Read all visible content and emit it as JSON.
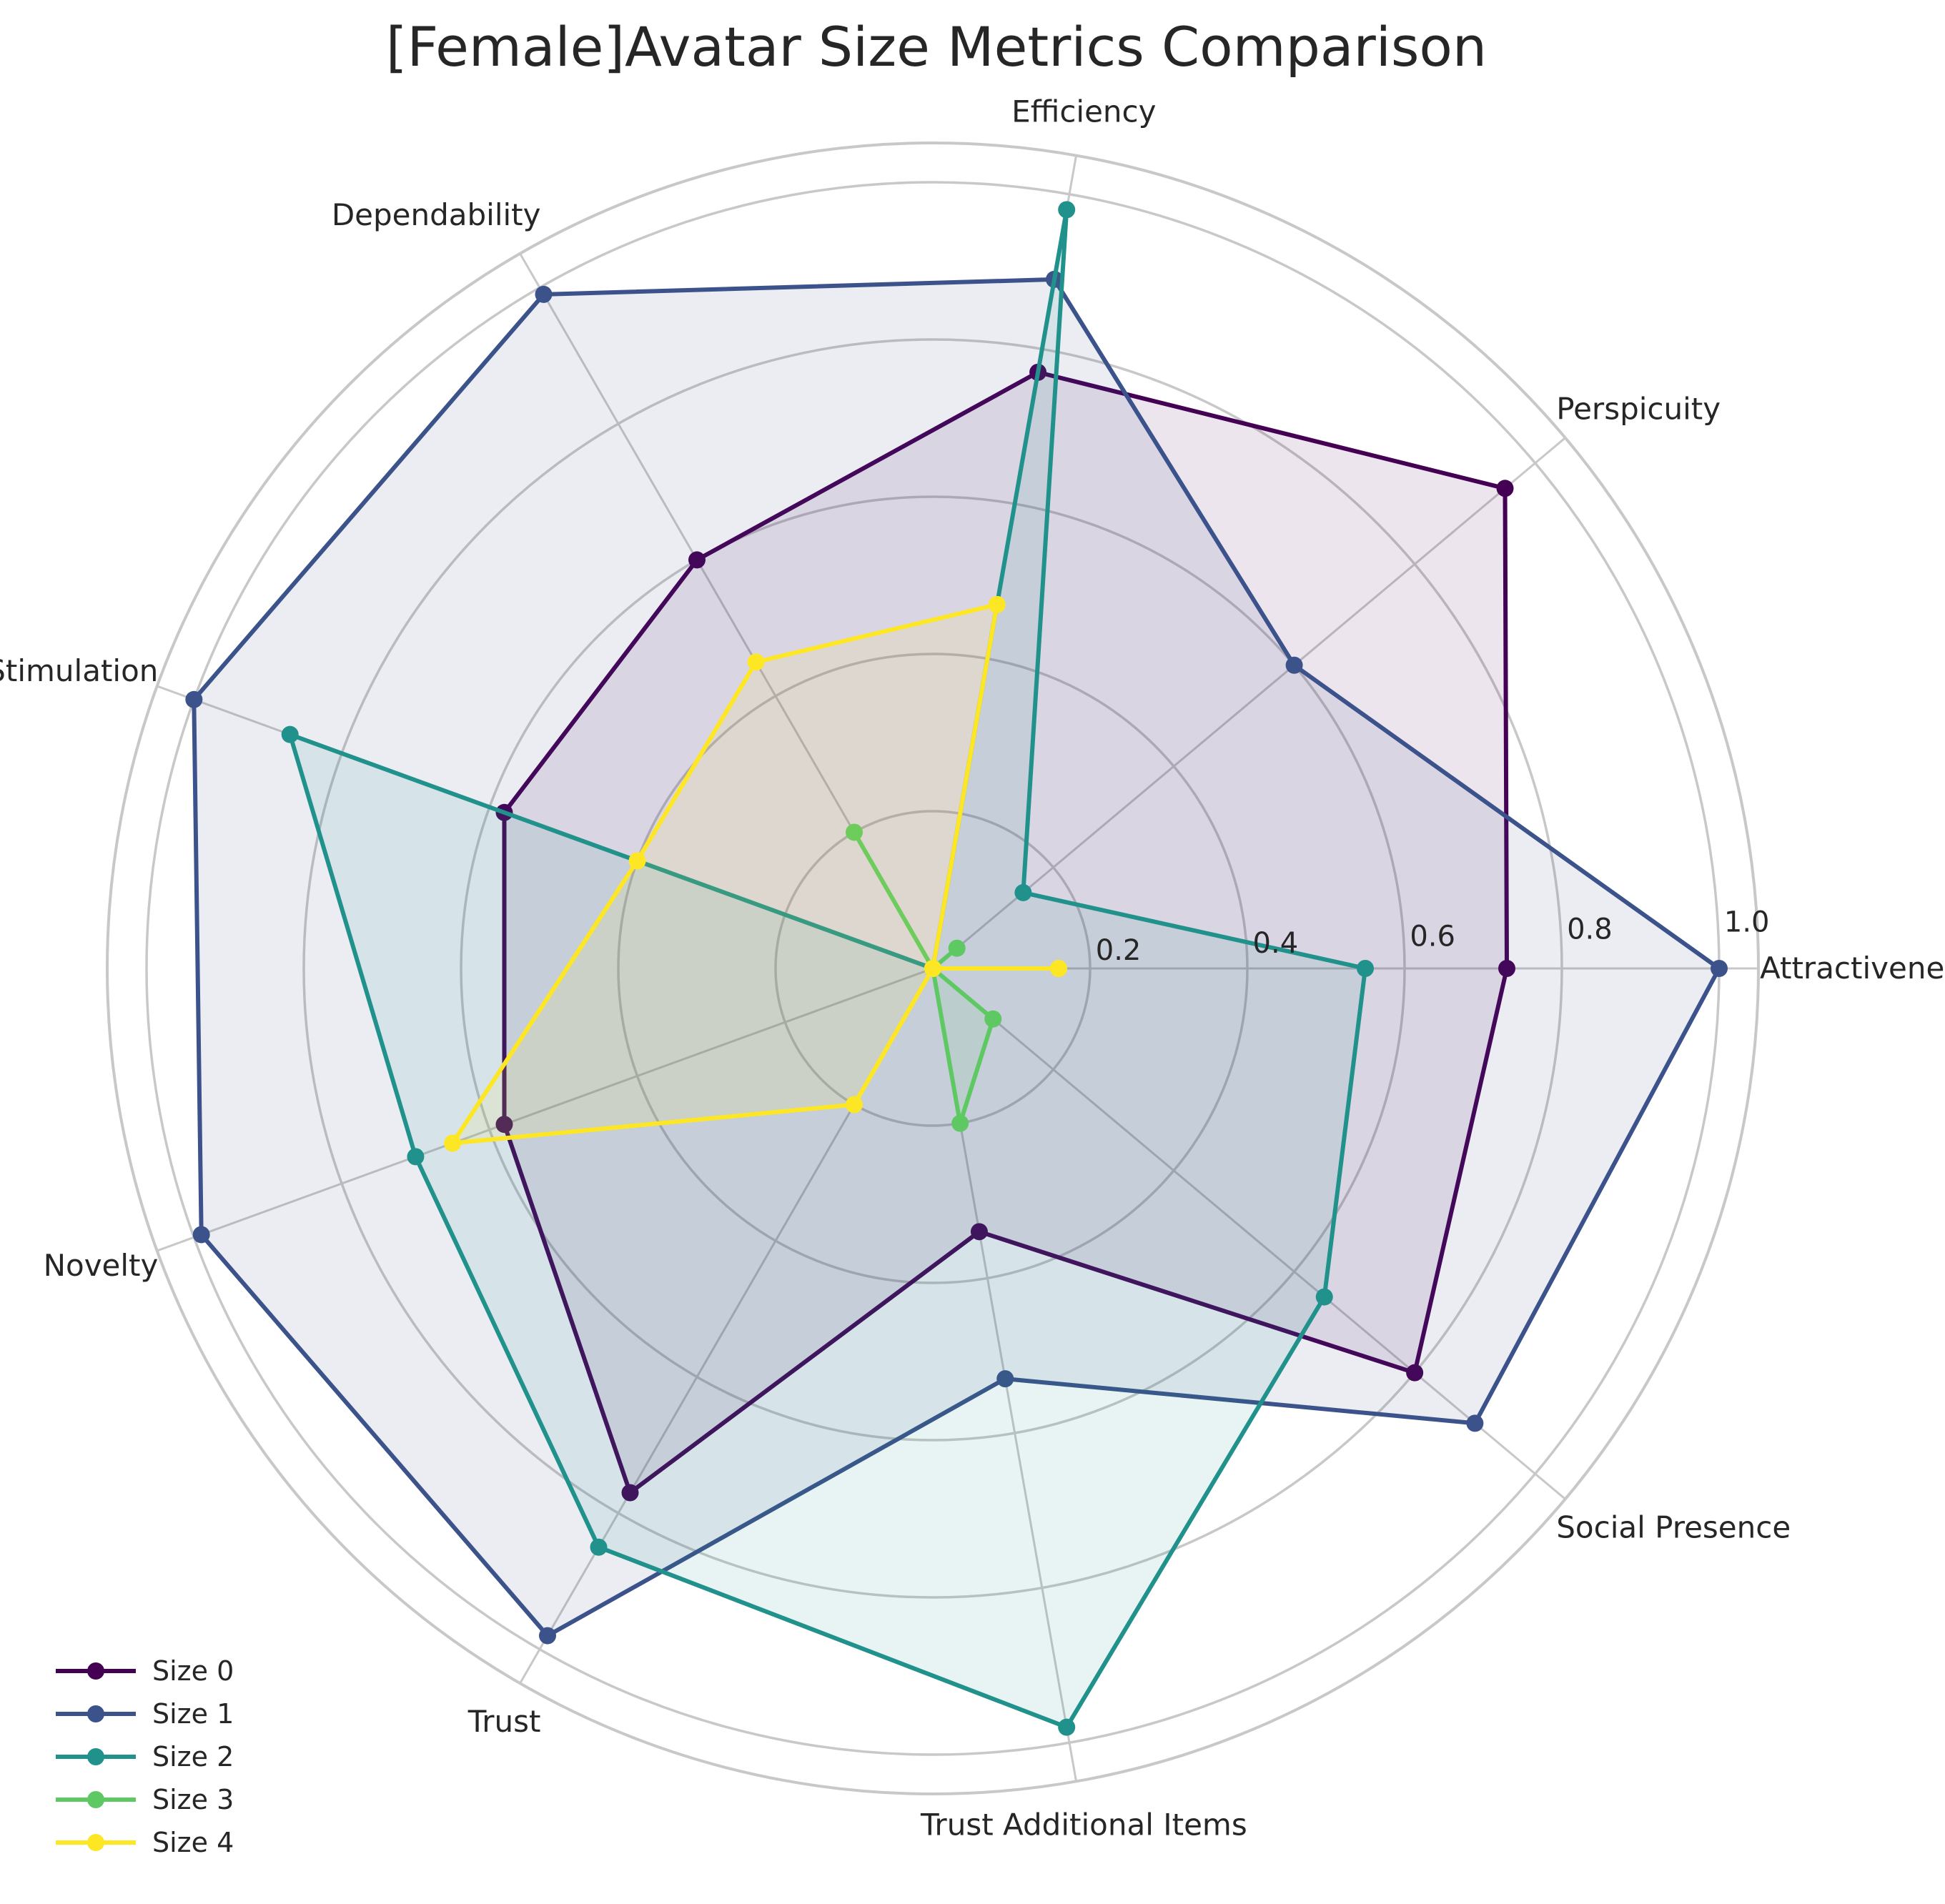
{
  "chart_data": {
    "type": "radar",
    "title": "[Female]Avatar Size Metrics Comparison",
    "categories": [
      "Attractiveness",
      "Perspicuity",
      "Efficiency",
      "Dependability",
      "Stimulation",
      "Novelty",
      "Trust",
      "Trust Additional Items",
      "Social Presence"
    ],
    "rlim": [
      0,
      1.05
    ],
    "rticks": [
      0.2,
      0.4,
      0.6,
      0.8,
      1.0
    ],
    "rtick_labels": [
      "0.2",
      "0.4",
      "0.6",
      "0.8",
      "1.0"
    ],
    "grid": true,
    "legend_position": "bottom-left",
    "series": [
      {
        "name": "Size 0",
        "color": "#440154",
        "values": [
          0.73,
          0.95,
          0.77,
          0.6,
          0.58,
          0.58,
          0.77,
          0.34,
          0.8
        ]
      },
      {
        "name": "Size 1",
        "color": "#3b528b",
        "values": [
          1.0,
          0.6,
          0.89,
          0.99,
          1.0,
          0.99,
          0.98,
          0.53,
          0.9
        ]
      },
      {
        "name": "Size 2",
        "color": "#21918c",
        "values": [
          0.55,
          0.15,
          0.98,
          0.0,
          0.87,
          0.7,
          0.85,
          0.98,
          0.65
        ]
      },
      {
        "name": "Size 3",
        "color": "#5ec962",
        "values": [
          0.0,
          0.04,
          0.0,
          0.2,
          0.0,
          0.0,
          0.0,
          0.2,
          0.1
        ]
      },
      {
        "name": "Size 4",
        "color": "#fde725",
        "values": [
          0.16,
          0.0,
          0.47,
          0.45,
          0.4,
          0.65,
          0.2,
          0.0,
          0.0
        ]
      }
    ]
  }
}
